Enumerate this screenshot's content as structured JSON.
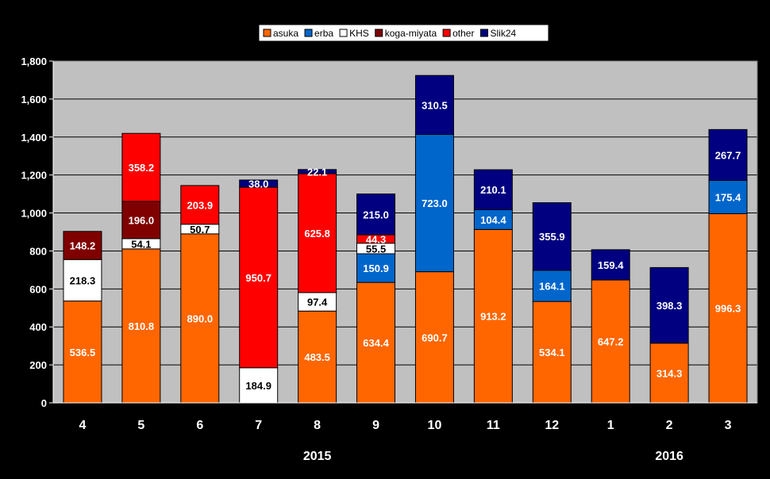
{
  "colors": {
    "background": "#000000",
    "plot_area": "#c0c0c0",
    "gridline": "#000000"
  },
  "chart_data": {
    "type": "bar",
    "stacked": true,
    "categories": [
      "4",
      "5",
      "6",
      "7",
      "8",
      "9",
      "10",
      "11",
      "12",
      "1",
      "2",
      "3"
    ],
    "year_labels": [
      {
        "text": "2015",
        "category_index": 4
      },
      {
        "text": "2016",
        "category_index": 10
      }
    ],
    "ylim": [
      0,
      1800
    ],
    "yticks": [
      0,
      200,
      400,
      600,
      800,
      1000,
      1200,
      1400,
      1600,
      1800
    ],
    "ytick_labels": [
      "0",
      "200",
      "400",
      "600",
      "800",
      "1,000",
      "1,200",
      "1,400",
      "1,600",
      "1,800"
    ],
    "grid": "horizontal",
    "legend_position": "top-center",
    "title": "",
    "xlabel": "",
    "ylabel": "",
    "series": [
      {
        "name": "asuka",
        "color": "#ff6600",
        "label_color": "#ffffff",
        "values": [
          536.5,
          810.8,
          890.0,
          0,
          483.5,
          634.4,
          690.7,
          913.2,
          534.1,
          647.2,
          314.3,
          996.3
        ]
      },
      {
        "name": "erba",
        "color": "#0066cc",
        "label_color": "#ffffff",
        "values": [
          0,
          0,
          0,
          0,
          0,
          150.9,
          723.0,
          104.4,
          164.1,
          0,
          0,
          175.4
        ]
      },
      {
        "name": "KHS",
        "color": "#ffffff",
        "label_color": "#000000",
        "values": [
          218.3,
          54.1,
          50.7,
          184.9,
          97.4,
          55.5,
          0,
          0,
          0,
          0,
          0,
          0
        ]
      },
      {
        "name": "koga-miyata",
        "color": "#800000",
        "label_color": "#ffffff",
        "values": [
          148.2,
          196.0,
          0,
          0,
          0,
          0,
          0,
          0,
          0,
          0,
          0,
          0
        ]
      },
      {
        "name": "other",
        "color": "#ff0000",
        "label_color": "#ffffff",
        "values": [
          0,
          358.2,
          203.9,
          950.7,
          625.8,
          44.3,
          0,
          0,
          0,
          0,
          0,
          0
        ]
      },
      {
        "name": "Slik24",
        "color": "#000080",
        "label_color": "#ffffff",
        "values": [
          0,
          0,
          0,
          38.0,
          22.1,
          215.0,
          310.5,
          210.1,
          355.9,
          159.4,
          398.3,
          267.7
        ]
      }
    ]
  }
}
